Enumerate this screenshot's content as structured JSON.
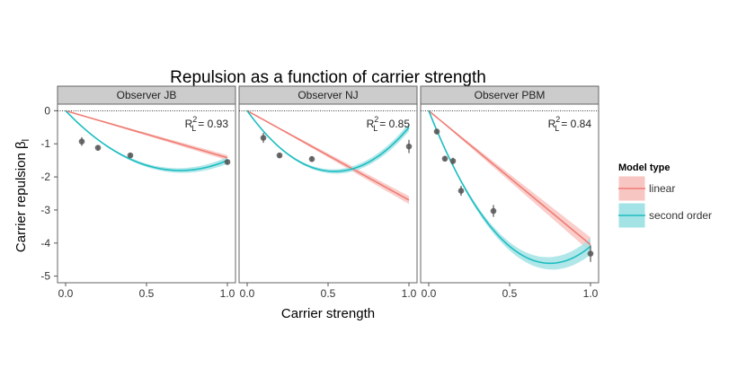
{
  "chart_data": {
    "type": "line",
    "title": "Repulsion as a function of carrier strength",
    "xlabel": "Carrier strength",
    "ylabel": "Carrier repulsion β",
    "ylabel_subscript": "l",
    "xlim": [
      0,
      1
    ],
    "ylim": [
      -5.2,
      0.2
    ],
    "xticks": [
      {
        "value": 0,
        "label": "0.0"
      },
      {
        "value": 0.5,
        "label": "0.5"
      },
      {
        "value": 1,
        "label": "1.0"
      }
    ],
    "yticks": [
      {
        "value": 0,
        "label": "0"
      },
      {
        "value": -1,
        "label": "-1"
      },
      {
        "value": -2,
        "label": "-2"
      },
      {
        "value": -3,
        "label": "-3"
      },
      {
        "value": -4,
        "label": "-4"
      },
      {
        "value": -5,
        "label": "-5"
      }
    ],
    "reference_line_y": 0,
    "legend": {
      "title": "Model type",
      "position": "right",
      "entries": [
        {
          "key": "linear",
          "label": "linear",
          "color": "#f07c74",
          "fill": "#f8c6c2"
        },
        {
          "key": "second_order",
          "label": "second order",
          "color": "#1cbdc1",
          "fill": "#a3e3e5"
        }
      ]
    },
    "facets": [
      {
        "name": "Observer JB",
        "r2_prefix": "R",
        "r2_sub": "L",
        "r2_sup": "2",
        "r2_value": "= 0.93",
        "points": [
          {
            "x": 0.1,
            "y": -0.93,
            "err": 0.13
          },
          {
            "x": 0.2,
            "y": -1.12,
            "err": 0.08
          },
          {
            "x": 0.4,
            "y": -1.35,
            "err": 0.08
          },
          {
            "x": 1.0,
            "y": -1.55,
            "err": 0.08
          }
        ],
        "linear": {
          "slope": -1.42,
          "band": 0.08
        },
        "second_order": {
          "a": -5.1,
          "b": 3.6,
          "band": 0.1
        }
      },
      {
        "name": "Observer NJ",
        "r2_prefix": "R",
        "r2_sub": "L",
        "r2_sup": "2",
        "r2_value": "= 0.85",
        "points": [
          {
            "x": 0.1,
            "y": -0.82,
            "err": 0.15
          },
          {
            "x": 0.2,
            "y": -1.35,
            "err": 0.08
          },
          {
            "x": 0.4,
            "y": -1.46,
            "err": 0.08
          },
          {
            "x": 1.0,
            "y": -1.08,
            "err": 0.2
          }
        ],
        "linear": {
          "slope": -2.7,
          "band": 0.12
        },
        "second_order": {
          "a": -6.8,
          "b": 6.3,
          "band": 0.12
        }
      },
      {
        "name": "Observer PBM",
        "r2_prefix": "R",
        "r2_sub": "L",
        "r2_sup": "2",
        "r2_value": "= 0.84",
        "points": [
          {
            "x": 0.05,
            "y": -0.63,
            "err": 0.08
          },
          {
            "x": 0.1,
            "y": -1.45,
            "err": 0.08
          },
          {
            "x": 0.15,
            "y": -1.52,
            "err": 0.1
          },
          {
            "x": 0.2,
            "y": -2.42,
            "err": 0.15
          },
          {
            "x": 0.4,
            "y": -3.03,
            "err": 0.18
          },
          {
            "x": 1.0,
            "y": -4.32,
            "err": 0.25
          }
        ],
        "linear": {
          "slope": -4.05,
          "band": 0.22
        },
        "second_order": {
          "a": -12.3,
          "b": 8.2,
          "band": 0.25
        }
      }
    ]
  }
}
